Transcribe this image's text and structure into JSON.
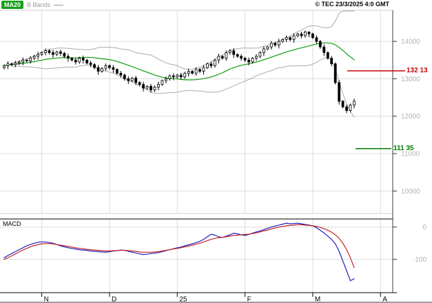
{
  "header": {
    "ma20_label": "MA20",
    "bbands_label": "B Bands",
    "copyright": "© TEC 23/3/2025 4:0 GMT"
  },
  "macd_panel": {
    "label": "MACD"
  },
  "levels": {
    "resistance": {
      "label": "132 13",
      "value": 13213,
      "color": "#cc0000"
    },
    "support": {
      "label": "111 35",
      "value": 11135,
      "color": "#007a00"
    }
  },
  "chart_data": {
    "type": "candlestick",
    "title": "",
    "price_axis": {
      "min": 9400,
      "max": 14830,
      "ticks": [
        14000,
        13000,
        12000,
        11000,
        10000
      ],
      "labels": [
        "14000",
        "13000",
        "12000",
        "11000",
        "10000"
      ]
    },
    "time_axis": {
      "ticks": [
        {
          "label": "N",
          "index": 10
        },
        {
          "label": "D",
          "index": 28
        },
        {
          "label": "25",
          "index": 46
        },
        {
          "label": "F",
          "index": 64
        },
        {
          "label": "M",
          "index": 82
        },
        {
          "label": "A",
          "index": 100
        }
      ]
    },
    "overlays": {
      "ma20": {
        "period": 20,
        "color": "#1fa11f"
      },
      "bollinger": {
        "period": 20,
        "mult": 2,
        "color": "#ababab"
      }
    },
    "colors": {
      "grid": "#dcdcdc",
      "candle": "#000000",
      "axis_text": "#b2b2b2",
      "frame": "#3a3a3a"
    },
    "candles_ohlc": [
      [
        13300,
        13390,
        13250,
        13350
      ],
      [
        13350,
        13470,
        13260,
        13400
      ],
      [
        13400,
        13430,
        13340,
        13380
      ],
      [
        13380,
        13480,
        13310,
        13420
      ],
      [
        13420,
        13490,
        13370,
        13450
      ],
      [
        13450,
        13570,
        13360,
        13500
      ],
      [
        13500,
        13530,
        13440,
        13480
      ],
      [
        13480,
        13610,
        13410,
        13550
      ],
      [
        13550,
        13640,
        13500,
        13600
      ],
      [
        13600,
        13720,
        13510,
        13650
      ],
      [
        13650,
        13730,
        13610,
        13700
      ],
      [
        13700,
        13810,
        13630,
        13750
      ],
      [
        13750,
        13790,
        13650,
        13700
      ],
      [
        13700,
        13770,
        13560,
        13650
      ],
      [
        13650,
        13750,
        13610,
        13720
      ],
      [
        13720,
        13780,
        13610,
        13680
      ],
      [
        13680,
        13720,
        13550,
        13600
      ],
      [
        13600,
        13670,
        13460,
        13550
      ],
      [
        13550,
        13580,
        13460,
        13500
      ],
      [
        13500,
        13560,
        13380,
        13450
      ],
      [
        13450,
        13590,
        13400,
        13550
      ],
      [
        13550,
        13620,
        13410,
        13500
      ],
      [
        13500,
        13530,
        13380,
        13420
      ],
      [
        13420,
        13480,
        13310,
        13380
      ],
      [
        13380,
        13420,
        13250,
        13300
      ],
      [
        13300,
        13370,
        13110,
        13200
      ],
      [
        13200,
        13310,
        13160,
        13280
      ],
      [
        13280,
        13410,
        13210,
        13350
      ],
      [
        13350,
        13390,
        13250,
        13300
      ],
      [
        13300,
        13370,
        13160,
        13250
      ],
      [
        13250,
        13280,
        13110,
        13150
      ],
      [
        13150,
        13210,
        13030,
        13100
      ],
      [
        13100,
        13140,
        12950,
        13000
      ],
      [
        13000,
        13070,
        12860,
        12950
      ],
      [
        12950,
        13050,
        12910,
        13020
      ],
      [
        13020,
        13080,
        12830,
        12900
      ],
      [
        12900,
        12940,
        12800,
        12850
      ],
      [
        12850,
        12920,
        12660,
        12750
      ],
      [
        12750,
        12830,
        12710,
        12800
      ],
      [
        12800,
        12860,
        12630,
        12700
      ],
      [
        12700,
        12820,
        12650,
        12780
      ],
      [
        12780,
        12920,
        12690,
        12850
      ],
      [
        12850,
        12980,
        12810,
        12950
      ],
      [
        12950,
        13060,
        12880,
        13000
      ],
      [
        13000,
        13120,
        12950,
        13080
      ],
      [
        13080,
        13150,
        12960,
        13050
      ],
      [
        13050,
        13130,
        13010,
        13100
      ],
      [
        13100,
        13160,
        12980,
        13050
      ],
      [
        13050,
        13190,
        13000,
        13150
      ],
      [
        13150,
        13270,
        13060,
        13200
      ],
      [
        13200,
        13230,
        13110,
        13150
      ],
      [
        13150,
        13310,
        13080,
        13250
      ],
      [
        13250,
        13290,
        13150,
        13200
      ],
      [
        13200,
        13370,
        13110,
        13300
      ],
      [
        13300,
        13430,
        13260,
        13400
      ],
      [
        13400,
        13460,
        13280,
        13350
      ],
      [
        13350,
        13540,
        13300,
        13500
      ],
      [
        13500,
        13670,
        13410,
        13600
      ],
      [
        13600,
        13630,
        13510,
        13550
      ],
      [
        13550,
        13760,
        13480,
        13700
      ],
      [
        13700,
        13790,
        13650,
        13750
      ],
      [
        13750,
        13820,
        13560,
        13650
      ],
      [
        13650,
        13680,
        13560,
        13600
      ],
      [
        13600,
        13660,
        13480,
        13550
      ],
      [
        13550,
        13590,
        13450,
        13500
      ],
      [
        13500,
        13570,
        13360,
        13450
      ],
      [
        13450,
        13580,
        13410,
        13550
      ],
      [
        13550,
        13660,
        13480,
        13600
      ],
      [
        13600,
        13740,
        13550,
        13700
      ],
      [
        13700,
        13870,
        13610,
        13800
      ],
      [
        13800,
        13880,
        13760,
        13850
      ],
      [
        13850,
        14010,
        13780,
        13950
      ],
      [
        13950,
        13990,
        13850,
        13900
      ],
      [
        13900,
        14070,
        13810,
        14000
      ],
      [
        14000,
        14080,
        13960,
        14050
      ],
      [
        14050,
        14160,
        13980,
        14100
      ],
      [
        14100,
        14140,
        14000,
        14050
      ],
      [
        14050,
        14220,
        13960,
        14150
      ],
      [
        14150,
        14230,
        14110,
        14200
      ],
      [
        14200,
        14260,
        14080,
        14150
      ],
      [
        14150,
        14290,
        14100,
        14250
      ],
      [
        14250,
        14270,
        14110,
        14200
      ],
      [
        14200,
        14230,
        14060,
        14100
      ],
      [
        14100,
        14160,
        13930,
        14000
      ],
      [
        14000,
        14040,
        13800,
        13850
      ],
      [
        13850,
        13920,
        13610,
        13700
      ],
      [
        13700,
        13730,
        13510,
        13550
      ],
      [
        13550,
        13610,
        13330,
        13400
      ],
      [
        13400,
        13440,
        12850,
        12900
      ],
      [
        12900,
        12970,
        12310,
        12400
      ],
      [
        12400,
        12430,
        12210,
        12250
      ],
      [
        12250,
        12310,
        12080,
        12150
      ],
      [
        12150,
        12340,
        12100,
        12300
      ],
      [
        12300,
        12470,
        12210,
        12400
      ]
    ],
    "macd": {
      "ymax": 25,
      "ymin": -203,
      "gridlines": [
        {
          "value": 0,
          "label": "0"
        },
        {
          "value": -100,
          "label": "-100"
        }
      ],
      "macd_line": {
        "color": "#1c1cbe",
        "values": [
          -95,
          -88,
          -82,
          -76,
          -70,
          -64,
          -58,
          -54,
          -50,
          -47,
          -46,
          -46,
          -48,
          -50,
          -54,
          -58,
          -61,
          -64,
          -66,
          -68,
          -70,
          -71,
          -72,
          -74,
          -75,
          -76,
          -77,
          -78,
          -76,
          -74,
          -73,
          -71,
          -72,
          -75,
          -78,
          -80,
          -83,
          -85,
          -84,
          -82,
          -81,
          -79,
          -76,
          -73,
          -70,
          -67,
          -64,
          -62,
          -58,
          -55,
          -52,
          -48,
          -44,
          -38,
          -30,
          -22,
          -25,
          -30,
          -32,
          -28,
          -24,
          -19,
          -21,
          -24,
          -26,
          -23,
          -19,
          -15,
          -12,
          -8,
          -4,
          0,
          3,
          6,
          9,
          12,
          10,
          11,
          12,
          10,
          8,
          6,
          4,
          -2,
          -10,
          -18,
          -28,
          -38,
          -52,
          -75,
          -105,
          -135,
          -166,
          -160
        ]
      },
      "signal_line": {
        "color": "#c22222",
        "values": [
          -100,
          -95,
          -89,
          -83,
          -77,
          -71,
          -66,
          -61,
          -57,
          -54,
          -52,
          -51,
          -51,
          -52,
          -54,
          -56,
          -58,
          -60,
          -62,
          -64,
          -66,
          -67,
          -69,
          -70,
          -71,
          -72,
          -73,
          -74,
          -74,
          -73,
          -73,
          -72,
          -72,
          -73,
          -74,
          -75,
          -77,
          -78,
          -78,
          -78,
          -77,
          -76,
          -74,
          -72,
          -70,
          -68,
          -66,
          -64,
          -61,
          -59,
          -56,
          -53,
          -50,
          -46,
          -42,
          -38,
          -35,
          -33,
          -32,
          -30,
          -28,
          -26,
          -25,
          -24,
          -23,
          -22,
          -20,
          -18,
          -15,
          -12,
          -9,
          -6,
          -3,
          0,
          2,
          4,
          5,
          6,
          7,
          7,
          6,
          5,
          4,
          2,
          -1,
          -5,
          -10,
          -16,
          -24,
          -35,
          -50,
          -70,
          -95,
          -125
        ]
      }
    }
  }
}
